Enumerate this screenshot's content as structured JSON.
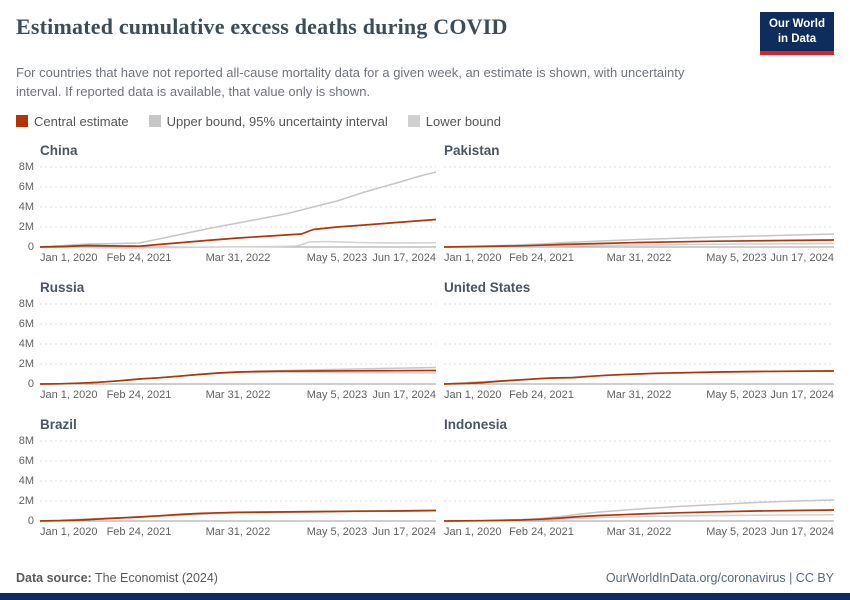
{
  "header": {
    "title": "Estimated cumulative excess deaths during COVID",
    "subtitle": "For countries that have not reported all-cause mortality data for a given week, an estimate is shown, with uncertainty interval. If reported data is available, that value only is shown.",
    "logo": {
      "line1": "Our World",
      "line2": "in Data"
    }
  },
  "legend": [
    {
      "label": "Central estimate",
      "color": "#b13507"
    },
    {
      "label": "Upper bound, 95% uncertainty interval",
      "color": "#c6c6c6"
    },
    {
      "label": "Lower bound",
      "color": "#d0d0d0"
    }
  ],
  "footer": {
    "source_label": "Data source:",
    "source_value": "The Economist (2024)",
    "credit": "OurWorldInData.org/coronavirus | CC BY"
  },
  "chart_data": {
    "type": "line",
    "title": "Estimated cumulative excess deaths during COVID",
    "y_unit": "deaths (millions)",
    "ylim": [
      -0.4,
      8.4
    ],
    "grid": "dashed-horizontal",
    "legend_position": "top",
    "x_tick_labels": [
      "Jan 1, 2020",
      "Feb 24, 2021",
      "Mar 31, 2022",
      "May 5, 2023",
      "Jun 17, 2024"
    ],
    "y_ticks": [
      0,
      2,
      4,
      6,
      8
    ],
    "y_tick_labels": [
      "0",
      "2M",
      "4M",
      "6M",
      "8M"
    ],
    "colors": {
      "central": "#b13507",
      "upper": "#c6c6c6",
      "lower": "#d0d0d0"
    },
    "x_units": "fraction of time axis (Jan 1 2020 → Jun 17 2024)",
    "y_units_of_series": "millions of cumulative excess deaths",
    "countries": [
      {
        "name": "China",
        "series": {
          "central": [
            [
              0,
              0
            ],
            [
              0.06,
              0.05
            ],
            [
              0.12,
              0.15
            ],
            [
              0.18,
              0.12
            ],
            [
              0.25,
              0.08
            ],
            [
              0.3,
              0.25
            ],
            [
              0.36,
              0.45
            ],
            [
              0.42,
              0.65
            ],
            [
              0.5,
              0.9
            ],
            [
              0.56,
              1.05
            ],
            [
              0.62,
              1.2
            ],
            [
              0.66,
              1.3
            ],
            [
              0.69,
              1.75
            ],
            [
              0.75,
              2.0
            ],
            [
              0.82,
              2.2
            ],
            [
              0.9,
              2.45
            ],
            [
              1,
              2.75
            ]
          ],
          "upper": [
            [
              0,
              0
            ],
            [
              0.06,
              0.15
            ],
            [
              0.12,
              0.3
            ],
            [
              0.2,
              0.35
            ],
            [
              0.25,
              0.4
            ],
            [
              0.3,
              0.8
            ],
            [
              0.36,
              1.3
            ],
            [
              0.42,
              1.8
            ],
            [
              0.5,
              2.4
            ],
            [
              0.56,
              2.85
            ],
            [
              0.62,
              3.3
            ],
            [
              0.69,
              4.0
            ],
            [
              0.75,
              4.6
            ],
            [
              0.82,
              5.5
            ],
            [
              0.9,
              6.4
            ],
            [
              0.96,
              7.1
            ],
            [
              1,
              7.5
            ]
          ],
          "lower": [
            [
              0,
              0
            ],
            [
              0.1,
              -0.05
            ],
            [
              0.2,
              -0.1
            ],
            [
              0.3,
              -0.08
            ],
            [
              0.4,
              -0.02
            ],
            [
              0.5,
              0.02
            ],
            [
              0.6,
              0.05
            ],
            [
              0.65,
              0.1
            ],
            [
              0.68,
              0.5
            ],
            [
              0.72,
              0.55
            ],
            [
              0.8,
              0.45
            ],
            [
              0.9,
              0.4
            ],
            [
              1,
              0.42
            ]
          ]
        }
      },
      {
        "name": "Pakistan",
        "series": {
          "central": [
            [
              0,
              0
            ],
            [
              0.1,
              0.05
            ],
            [
              0.2,
              0.12
            ],
            [
              0.25,
              0.18
            ],
            [
              0.3,
              0.25
            ],
            [
              0.4,
              0.35
            ],
            [
              0.5,
              0.45
            ],
            [
              0.6,
              0.52
            ],
            [
              0.7,
              0.58
            ],
            [
              0.8,
              0.62
            ],
            [
              0.9,
              0.66
            ],
            [
              1,
              0.7
            ]
          ],
          "upper": [
            [
              0,
              0
            ],
            [
              0.1,
              0.1
            ],
            [
              0.2,
              0.22
            ],
            [
              0.25,
              0.3
            ],
            [
              0.3,
              0.42
            ],
            [
              0.4,
              0.6
            ],
            [
              0.5,
              0.75
            ],
            [
              0.6,
              0.88
            ],
            [
              0.7,
              1.0
            ],
            [
              0.8,
              1.1
            ],
            [
              0.9,
              1.2
            ],
            [
              1,
              1.3
            ]
          ],
          "lower": [
            [
              0,
              0
            ],
            [
              0.1,
              0.02
            ],
            [
              0.2,
              0.05
            ],
            [
              0.3,
              0.1
            ],
            [
              0.4,
              0.15
            ],
            [
              0.5,
              0.2
            ],
            [
              0.6,
              0.24
            ],
            [
              0.7,
              0.28
            ],
            [
              0.8,
              0.3
            ],
            [
              0.9,
              0.33
            ],
            [
              1,
              0.35
            ]
          ]
        }
      },
      {
        "name": "Russia",
        "series": {
          "central": [
            [
              0,
              0
            ],
            [
              0.05,
              0.02
            ],
            [
              0.1,
              0.08
            ],
            [
              0.15,
              0.18
            ],
            [
              0.2,
              0.32
            ],
            [
              0.25,
              0.5
            ],
            [
              0.3,
              0.62
            ],
            [
              0.35,
              0.78
            ],
            [
              0.4,
              0.95
            ],
            [
              0.45,
              1.1
            ],
            [
              0.5,
              1.2
            ],
            [
              0.55,
              1.25
            ],
            [
              0.6,
              1.28
            ],
            [
              0.7,
              1.3
            ],
            [
              0.8,
              1.32
            ],
            [
              0.9,
              1.33
            ],
            [
              1,
              1.35
            ]
          ],
          "upper": [
            [
              0,
              0
            ],
            [
              0.05,
              0.02
            ],
            [
              0.1,
              0.08
            ],
            [
              0.15,
              0.18
            ],
            [
              0.2,
              0.32
            ],
            [
              0.25,
              0.5
            ],
            [
              0.3,
              0.62
            ],
            [
              0.35,
              0.78
            ],
            [
              0.4,
              0.95
            ],
            [
              0.45,
              1.1
            ],
            [
              0.5,
              1.2
            ],
            [
              0.55,
              1.27
            ],
            [
              0.6,
              1.33
            ],
            [
              0.7,
              1.42
            ],
            [
              0.8,
              1.5
            ],
            [
              0.9,
              1.58
            ],
            [
              1,
              1.65
            ]
          ],
          "lower": [
            [
              0,
              0
            ],
            [
              0.05,
              0.02
            ],
            [
              0.1,
              0.08
            ],
            [
              0.15,
              0.18
            ],
            [
              0.2,
              0.32
            ],
            [
              0.25,
              0.5
            ],
            [
              0.3,
              0.62
            ],
            [
              0.35,
              0.78
            ],
            [
              0.4,
              0.95
            ],
            [
              0.45,
              1.08
            ],
            [
              0.5,
              1.15
            ],
            [
              0.55,
              1.18
            ],
            [
              0.6,
              1.18
            ],
            [
              0.7,
              1.16
            ],
            [
              0.8,
              1.14
            ],
            [
              0.9,
              1.12
            ],
            [
              1,
              1.1
            ]
          ]
        }
      },
      {
        "name": "United States",
        "series": {
          "central": [
            [
              0,
              0
            ],
            [
              0.05,
              0.05
            ],
            [
              0.1,
              0.15
            ],
            [
              0.15,
              0.3
            ],
            [
              0.2,
              0.42
            ],
            [
              0.25,
              0.55
            ],
            [
              0.28,
              0.6
            ],
            [
              0.33,
              0.63
            ],
            [
              0.38,
              0.78
            ],
            [
              0.42,
              0.88
            ],
            [
              0.48,
              0.98
            ],
            [
              0.55,
              1.08
            ],
            [
              0.6,
              1.12
            ],
            [
              0.7,
              1.2
            ],
            [
              0.8,
              1.25
            ],
            [
              0.9,
              1.28
            ],
            [
              1,
              1.3
            ]
          ],
          "upper": [
            [
              0,
              0
            ],
            [
              0.25,
              0.55
            ],
            [
              0.5,
              1.0
            ],
            [
              0.75,
              1.23
            ],
            [
              1,
              1.33
            ]
          ],
          "lower": [
            [
              0,
              0
            ],
            [
              0.25,
              0.55
            ],
            [
              0.5,
              1.0
            ],
            [
              0.75,
              1.21
            ],
            [
              1,
              1.27
            ]
          ]
        }
      },
      {
        "name": "Brazil",
        "series": {
          "central": [
            [
              0,
              0
            ],
            [
              0.05,
              0.03
            ],
            [
              0.1,
              0.1
            ],
            [
              0.15,
              0.2
            ],
            [
              0.2,
              0.3
            ],
            [
              0.25,
              0.4
            ],
            [
              0.3,
              0.52
            ],
            [
              0.35,
              0.65
            ],
            [
              0.4,
              0.75
            ],
            [
              0.45,
              0.82
            ],
            [
              0.5,
              0.86
            ],
            [
              0.6,
              0.9
            ],
            [
              0.7,
              0.94
            ],
            [
              0.8,
              0.98
            ],
            [
              0.9,
              1.0
            ],
            [
              1,
              1.05
            ]
          ],
          "upper": [
            [
              0,
              0
            ],
            [
              0.25,
              0.42
            ],
            [
              0.5,
              0.88
            ],
            [
              0.75,
              0.98
            ],
            [
              1,
              1.08
            ]
          ],
          "lower": [
            [
              0,
              0
            ],
            [
              0.25,
              0.38
            ],
            [
              0.5,
              0.84
            ],
            [
              0.75,
              0.93
            ],
            [
              1,
              1.02
            ]
          ]
        }
      },
      {
        "name": "Indonesia",
        "series": {
          "central": [
            [
              0,
              0
            ],
            [
              0.1,
              0.03
            ],
            [
              0.2,
              0.1
            ],
            [
              0.25,
              0.18
            ],
            [
              0.3,
              0.3
            ],
            [
              0.35,
              0.45
            ],
            [
              0.4,
              0.55
            ],
            [
              0.45,
              0.62
            ],
            [
              0.5,
              0.7
            ],
            [
              0.55,
              0.76
            ],
            [
              0.6,
              0.82
            ],
            [
              0.7,
              0.92
            ],
            [
              0.8,
              1.0
            ],
            [
              0.9,
              1.05
            ],
            [
              1,
              1.1
            ]
          ],
          "upper": [
            [
              0,
              0
            ],
            [
              0.1,
              0.05
            ],
            [
              0.2,
              0.15
            ],
            [
              0.25,
              0.25
            ],
            [
              0.3,
              0.45
            ],
            [
              0.35,
              0.7
            ],
            [
              0.4,
              0.9
            ],
            [
              0.45,
              1.05
            ],
            [
              0.5,
              1.2
            ],
            [
              0.55,
              1.32
            ],
            [
              0.6,
              1.45
            ],
            [
              0.7,
              1.65
            ],
            [
              0.8,
              1.85
            ],
            [
              0.9,
              2.0
            ],
            [
              1,
              2.1
            ]
          ],
          "lower": [
            [
              0,
              0
            ],
            [
              0.1,
              0.02
            ],
            [
              0.2,
              0.06
            ],
            [
              0.3,
              0.18
            ],
            [
              0.35,
              0.28
            ],
            [
              0.4,
              0.35
            ],
            [
              0.45,
              0.4
            ],
            [
              0.5,
              0.45
            ],
            [
              0.6,
              0.5
            ],
            [
              0.7,
              0.55
            ],
            [
              0.8,
              0.58
            ],
            [
              0.9,
              0.6
            ],
            [
              1,
              0.62
            ]
          ]
        }
      }
    ]
  }
}
